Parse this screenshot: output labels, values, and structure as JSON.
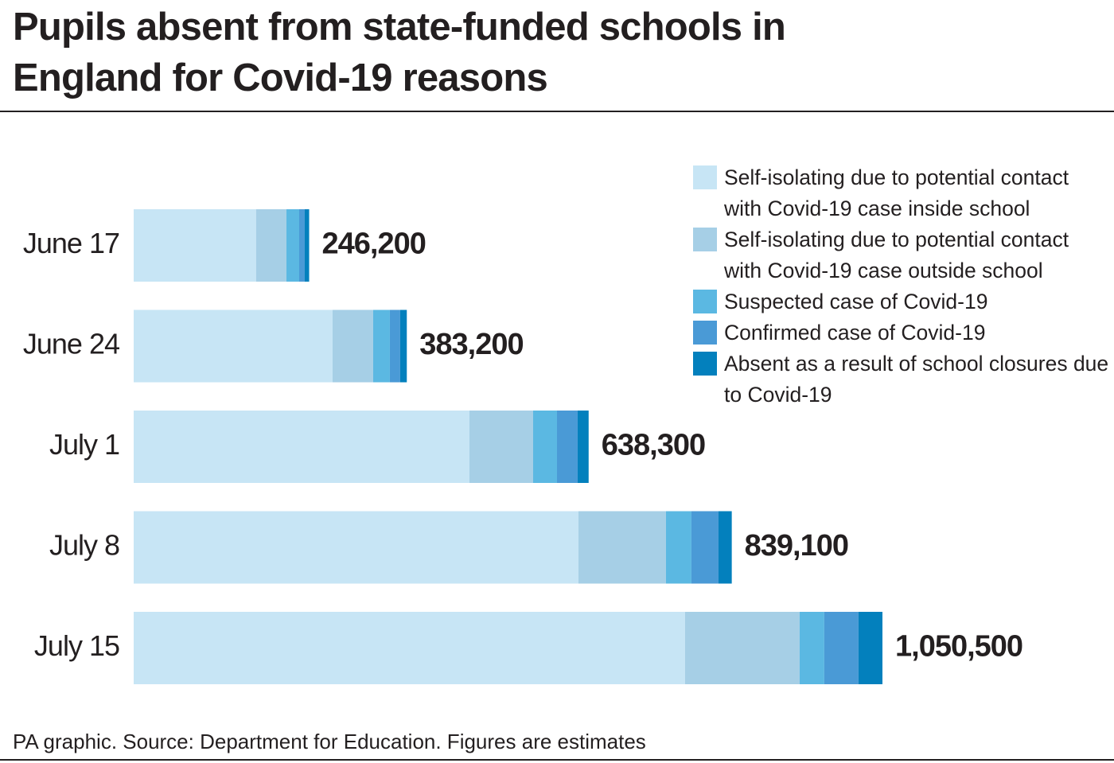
{
  "chart_data": {
    "type": "stacked-bar",
    "title": "Pupils absent from state-funded schools in England for Covid-19 reasons",
    "source": "PA graphic. Source: Department for Education. Figures are estimates",
    "categories": [
      "June 17",
      "June 24",
      "July 1",
      "July 8",
      "July 15"
    ],
    "values": [
      246200,
      383200,
      638300,
      839100,
      1050500
    ],
    "value_labels": [
      "246,200",
      "383,200",
      "638,300",
      "839,100",
      "1,050,500"
    ],
    "series": [
      {
        "name": "Self-isolating due to potential contact with Covid-19 case inside school",
        "color": "#c7e5f5",
        "values": [
          171900,
          279100,
          471100,
          624000,
          773600
        ]
      },
      {
        "name": "Self-isolating due to potential contact with Covid-19 case outside school",
        "color": "#a6cfe6",
        "values": [
          42400,
          56900,
          89300,
          122800,
          160700
        ]
      },
      {
        "name": "Suspected case of Covid-19",
        "color": "#5bb8e2",
        "values": [
          17900,
          23400,
          33500,
          35700,
          34600
        ]
      },
      {
        "name": "Confirmed case of Covid-19",
        "color": "#4a9ad6",
        "values": [
          7800,
          14500,
          29000,
          38000,
          48000
        ]
      },
      {
        "name": "Absent as a result of school closures due to Covid-19",
        "color": "#0380bd",
        "values": [
          6200,
          9300,
          15400,
          18600,
          33600
        ]
      }
    ]
  }
}
